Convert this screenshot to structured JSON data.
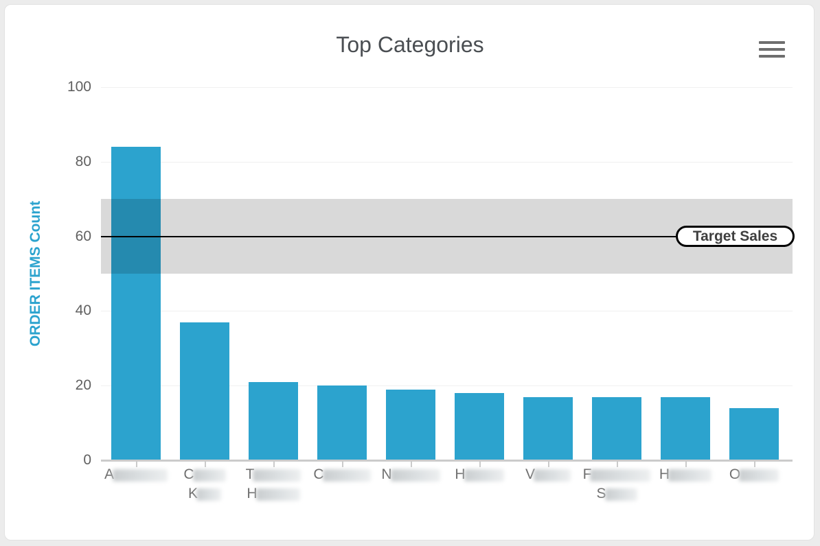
{
  "chart_data": {
    "type": "bar",
    "title": "Top Categories",
    "xlabel": "",
    "ylabel": "ORDER ITEMS Count",
    "ylim": [
      0,
      100
    ],
    "yticks": [
      0,
      20,
      40,
      60,
      80,
      100
    ],
    "grid": true,
    "legend_position": "none",
    "values": [
      84,
      37,
      21,
      20,
      19,
      18,
      17,
      17,
      17,
      14
    ],
    "categories": [
      {
        "lines": [
          {
            "text": "A",
            "redacted": true,
            "blur_width": 80
          }
        ]
      },
      {
        "lines": [
          {
            "text": "C",
            "redacted": true,
            "blur_width": 48
          },
          {
            "text": "K",
            "redacted": true,
            "blur_width": 36
          }
        ]
      },
      {
        "lines": [
          {
            "text": "T",
            "redacted": true,
            "blur_width": 70
          },
          {
            "text": "H",
            "redacted": true,
            "blur_width": 64
          }
        ]
      },
      {
        "lines": [
          {
            "text": "C",
            "redacted": true,
            "blur_width": 70
          }
        ]
      },
      {
        "lines": [
          {
            "text": "N",
            "redacted": true,
            "blur_width": 72
          }
        ]
      },
      {
        "lines": [
          {
            "text": "H",
            "redacted": true,
            "blur_width": 58
          }
        ]
      },
      {
        "lines": [
          {
            "text": "V",
            "redacted": true,
            "blur_width": 54
          }
        ]
      },
      {
        "lines": [
          {
            "text": "F",
            "redacted": true,
            "blur_width": 88
          },
          {
            "text": "S",
            "redacted": true,
            "blur_width": 47
          }
        ]
      },
      {
        "lines": [
          {
            "text": "H",
            "redacted": true,
            "blur_width": 63
          }
        ]
      },
      {
        "lines": [
          {
            "text": "O",
            "redacted": true,
            "blur_width": 58
          }
        ]
      }
    ],
    "plot_band": {
      "from": 50,
      "to": 70
    },
    "plot_line": {
      "value": 60,
      "label": "Target Sales"
    },
    "colors": {
      "bar": "#2CA3CE",
      "band_overlay": "rgba(0,0,0,0.15)",
      "plot_line": "#000000",
      "grid": "#F0F0F0",
      "axis_line": "#CBCBCB",
      "tick_text": "#606060",
      "title_text": "#4A4E52",
      "y_axis_title_text": "#2CA3CE",
      "menu_icon": "#6E6E6E"
    }
  }
}
